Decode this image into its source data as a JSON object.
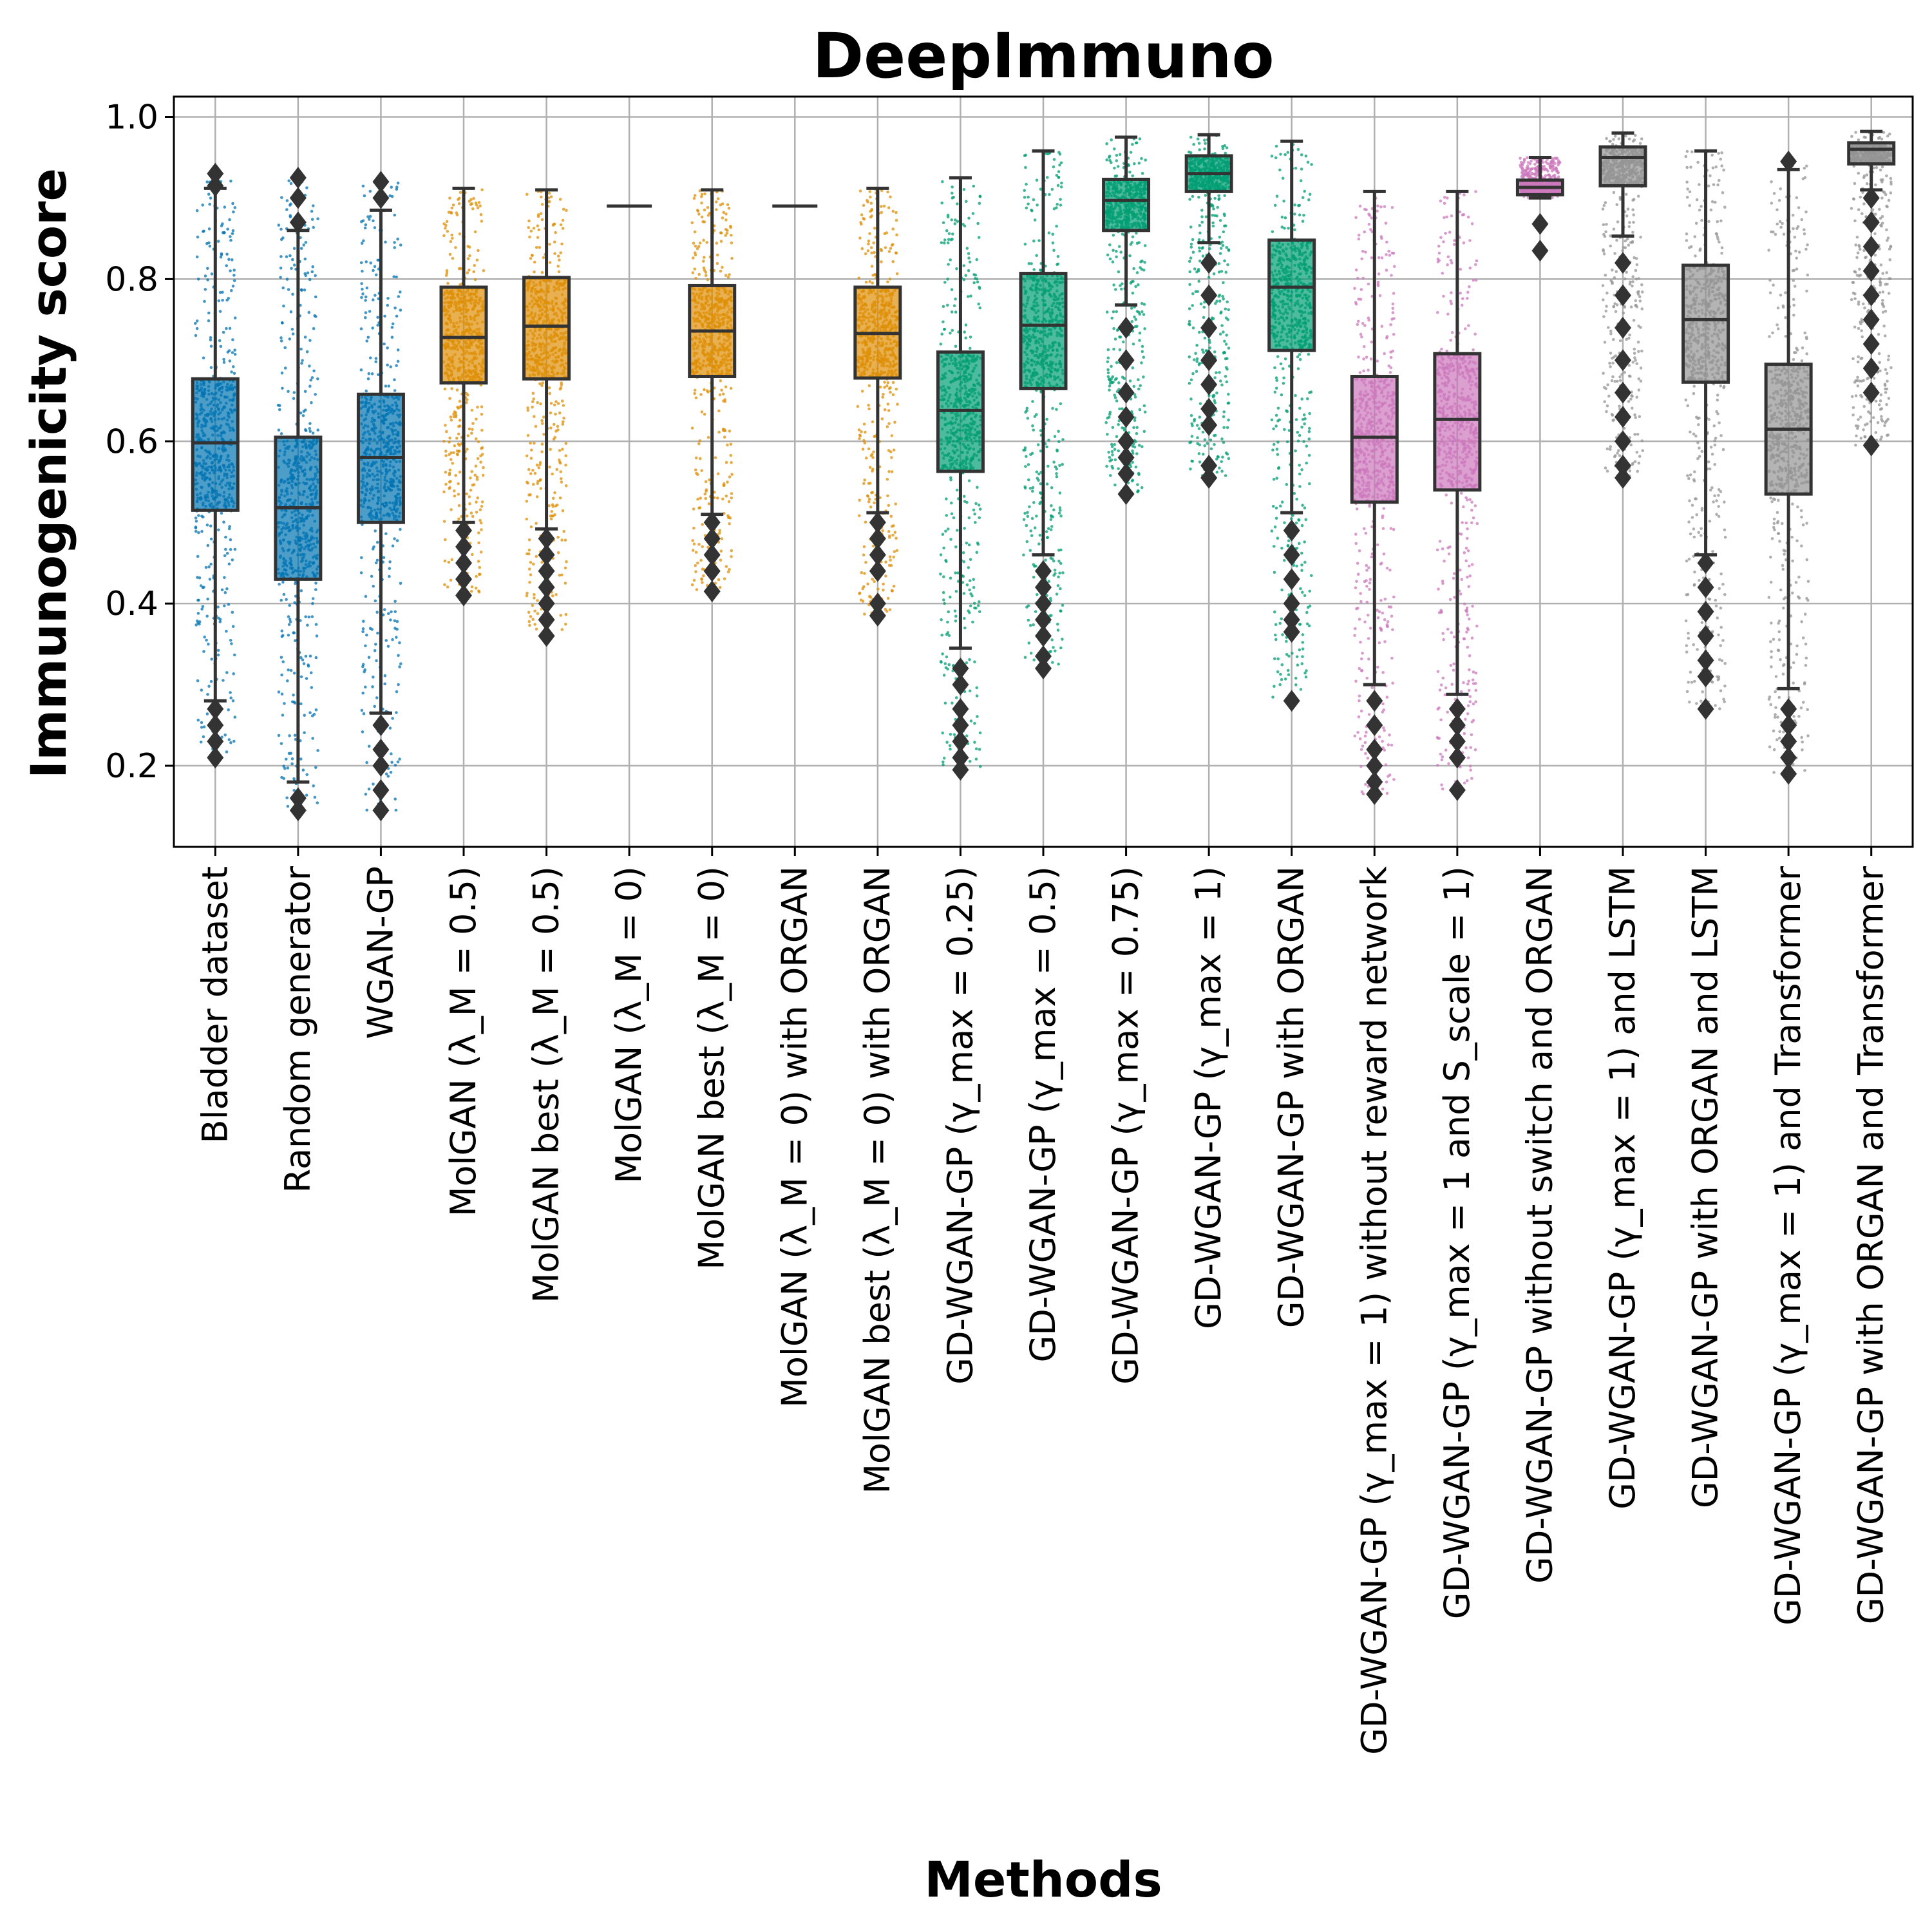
{
  "chart_data": {
    "type": "box",
    "title": "DeepImmuno",
    "xlabel": "Methods",
    "ylabel": "Immunogenicity score",
    "ylim": [
      0.1,
      1.025
    ],
    "yticks": [
      "0.2",
      "0.4",
      "0.6",
      "0.8",
      "1.0"
    ],
    "grid": true,
    "colors": {
      "blue": "#0173b2",
      "orange": "#de8f05",
      "green": "#029e73",
      "pink": "#cc78bc",
      "gray": "#949494",
      "edge": "#333333"
    },
    "categories": [
      {
        "label": "Bladder dataset",
        "color": "blue",
        "q1": 0.515,
        "median": 0.598,
        "q3": 0.677,
        "whisker_low": 0.28,
        "whisker_high": 0.912,
        "points_low": 0.215,
        "points_high": 0.93,
        "outliers": [
          0.21,
          0.23,
          0.25,
          0.27,
          0.915,
          0.93
        ]
      },
      {
        "label": "Random generator",
        "color": "blue",
        "q1": 0.43,
        "median": 0.518,
        "q3": 0.605,
        "whisker_low": 0.18,
        "whisker_high": 0.86,
        "points_low": 0.15,
        "points_high": 0.925,
        "outliers": [
          0.145,
          0.16,
          0.87,
          0.9,
          0.925
        ]
      },
      {
        "label": "WGAN-GP",
        "color": "blue",
        "q1": 0.5,
        "median": 0.58,
        "q3": 0.658,
        "whisker_low": 0.265,
        "whisker_high": 0.885,
        "points_low": 0.145,
        "points_high": 0.92,
        "outliers": [
          0.145,
          0.17,
          0.2,
          0.22,
          0.25,
          0.9,
          0.92
        ]
      },
      {
        "label": "MolGAN (λ_M = 0.5)",
        "color": "orange",
        "q1": 0.672,
        "median": 0.728,
        "q3": 0.79,
        "whisker_low": 0.5,
        "whisker_high": 0.912,
        "points_low": 0.41,
        "points_high": 0.912,
        "outliers": [
          0.41,
          0.43,
          0.45,
          0.47,
          0.49
        ]
      },
      {
        "label": "MolGAN best (λ_M = 0.5)",
        "color": "orange",
        "q1": 0.677,
        "median": 0.742,
        "q3": 0.802,
        "whisker_low": 0.492,
        "whisker_high": 0.91,
        "points_low": 0.36,
        "points_high": 0.91,
        "outliers": [
          0.36,
          0.38,
          0.4,
          0.42,
          0.44,
          0.46,
          0.48
        ]
      },
      {
        "label": "MolGAN (λ_M = 0)",
        "color": "orange",
        "q1": 0.89,
        "median": 0.89,
        "q3": 0.89,
        "whisker_low": 0.89,
        "whisker_high": 0.89,
        "points_low": 0.89,
        "points_high": 0.89,
        "outliers": []
      },
      {
        "label": "MolGAN best (λ_M = 0)",
        "color": "orange",
        "q1": 0.68,
        "median": 0.736,
        "q3": 0.792,
        "whisker_low": 0.51,
        "whisker_high": 0.91,
        "points_low": 0.415,
        "points_high": 0.91,
        "outliers": [
          0.415,
          0.44,
          0.46,
          0.48,
          0.5
        ]
      },
      {
        "label": "MolGAN (λ_M = 0) with ORGAN",
        "color": "orange",
        "q1": 0.89,
        "median": 0.89,
        "q3": 0.89,
        "whisker_low": 0.89,
        "whisker_high": 0.89,
        "points_low": 0.89,
        "points_high": 0.89,
        "outliers": []
      },
      {
        "label": "MolGAN best (λ_M = 0) with ORGAN",
        "color": "orange",
        "q1": 0.678,
        "median": 0.733,
        "q3": 0.79,
        "whisker_low": 0.512,
        "whisker_high": 0.912,
        "points_low": 0.385,
        "points_high": 0.912,
        "outliers": [
          0.385,
          0.4,
          0.44,
          0.46,
          0.48,
          0.5
        ]
      },
      {
        "label": "GD-WGAN-GP (γ_max = 0.25)",
        "color": "green",
        "q1": 0.563,
        "median": 0.638,
        "q3": 0.71,
        "whisker_low": 0.345,
        "whisker_high": 0.925,
        "points_low": 0.195,
        "points_high": 0.925,
        "outliers": [
          0.195,
          0.21,
          0.23,
          0.25,
          0.27,
          0.3,
          0.32
        ]
      },
      {
        "label": "GD-WGAN-GP (γ_max = 0.5)",
        "color": "green",
        "q1": 0.665,
        "median": 0.743,
        "q3": 0.807,
        "whisker_low": 0.46,
        "whisker_high": 0.958,
        "points_low": 0.32,
        "points_high": 0.958,
        "outliers": [
          0.32,
          0.335,
          0.36,
          0.38,
          0.4,
          0.42,
          0.44
        ]
      },
      {
        "label": "GD-WGAN-GP (γ_max = 0.75)",
        "color": "green",
        "q1": 0.86,
        "median": 0.897,
        "q3": 0.923,
        "whisker_low": 0.768,
        "whisker_high": 0.975,
        "points_low": 0.535,
        "points_high": 0.975,
        "outliers": [
          0.535,
          0.56,
          0.58,
          0.6,
          0.63,
          0.66,
          0.7,
          0.74
        ]
      },
      {
        "label": "GD-WGAN-GP (γ_max = 1)",
        "color": "green",
        "q1": 0.908,
        "median": 0.93,
        "q3": 0.952,
        "whisker_low": 0.845,
        "whisker_high": 0.978,
        "points_low": 0.555,
        "points_high": 0.978,
        "outliers": [
          0.555,
          0.57,
          0.62,
          0.64,
          0.67,
          0.7,
          0.74,
          0.78,
          0.82
        ]
      },
      {
        "label": "GD-WGAN-GP with ORGAN",
        "color": "green",
        "q1": 0.712,
        "median": 0.79,
        "q3": 0.848,
        "whisker_low": 0.512,
        "whisker_high": 0.97,
        "points_low": 0.28,
        "points_high": 0.97,
        "outliers": [
          0.28,
          0.365,
          0.38,
          0.4,
          0.43,
          0.46,
          0.49
        ]
      },
      {
        "label": "GD-WGAN-GP (γ_max = 1) without reward network",
        "color": "pink",
        "q1": 0.525,
        "median": 0.605,
        "q3": 0.68,
        "whisker_low": 0.3,
        "whisker_high": 0.908,
        "points_low": 0.165,
        "points_high": 0.908,
        "outliers": [
          0.165,
          0.18,
          0.2,
          0.22,
          0.25,
          0.28
        ]
      },
      {
        "label": "GD-WGAN-GP (γ_max = 1 and S_scale = 1)",
        "color": "pink",
        "q1": 0.54,
        "median": 0.627,
        "q3": 0.708,
        "whisker_low": 0.288,
        "whisker_high": 0.908,
        "points_low": 0.17,
        "points_high": 0.908,
        "outliers": [
          0.17,
          0.21,
          0.23,
          0.25,
          0.27
        ]
      },
      {
        "label": "GD-WGAN-GP without switch and ORGAN",
        "color": "pink",
        "q1": 0.904,
        "median": 0.913,
        "q3": 0.922,
        "whisker_low": 0.9,
        "whisker_high": 0.95,
        "points_low": 0.9,
        "points_high": 0.95,
        "outliers": [
          0.835,
          0.868
        ]
      },
      {
        "label": "GD-WGAN-GP (γ_max = 1) and LSTM",
        "color": "gray",
        "q1": 0.915,
        "median": 0.95,
        "q3": 0.963,
        "whisker_low": 0.853,
        "whisker_high": 0.98,
        "points_low": 0.555,
        "points_high": 0.98,
        "outliers": [
          0.555,
          0.57,
          0.6,
          0.63,
          0.66,
          0.7,
          0.74,
          0.78,
          0.82
        ]
      },
      {
        "label": "GD-WGAN-GP with ORGAN and LSTM",
        "color": "gray",
        "q1": 0.673,
        "median": 0.75,
        "q3": 0.817,
        "whisker_low": 0.46,
        "whisker_high": 0.958,
        "points_low": 0.27,
        "points_high": 0.958,
        "outliers": [
          0.27,
          0.31,
          0.33,
          0.36,
          0.39,
          0.42,
          0.45
        ]
      },
      {
        "label": "GD-WGAN-GP (γ_max = 1) and Transformer",
        "color": "gray",
        "q1": 0.535,
        "median": 0.615,
        "q3": 0.695,
        "whisker_low": 0.295,
        "whisker_high": 0.935,
        "points_low": 0.19,
        "points_high": 0.945,
        "outliers": [
          0.19,
          0.21,
          0.23,
          0.25,
          0.27,
          0.945
        ]
      },
      {
        "label": "GD-WGAN-GP with ORGAN and Transformer",
        "color": "gray",
        "q1": 0.942,
        "median": 0.96,
        "q3": 0.968,
        "whisker_low": 0.91,
        "whisker_high": 0.982,
        "points_low": 0.595,
        "points_high": 0.982,
        "outliers": [
          0.595,
          0.66,
          0.69,
          0.72,
          0.75,
          0.78,
          0.81,
          0.84,
          0.87,
          0.9
        ]
      }
    ]
  }
}
